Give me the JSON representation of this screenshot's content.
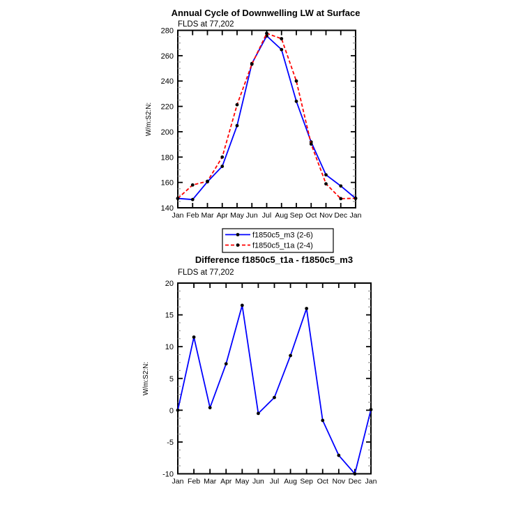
{
  "page": {
    "background": "#ffffff"
  },
  "colors": {
    "axis": "#000000",
    "minor_tick": "#999999",
    "marker": "#000000",
    "series_blue": "#0000ff",
    "series_red": "#ff0000"
  },
  "chart_data": [
    {
      "type": "line",
      "title": "Annual Cycle of Downwelling LW at Surface",
      "subtitle": "FLDS at 77,202",
      "ylabel": "W/m:S2:N:",
      "xlabel": "",
      "categories": [
        "Jan",
        "Feb",
        "Mar",
        "Apr",
        "May",
        "Jun",
        "Jul",
        "Aug",
        "Sep",
        "Oct",
        "Nov",
        "Dec",
        "Jan"
      ],
      "ylim": [
        140,
        280
      ],
      "ytick_major": 20,
      "yminor_per_major": 4,
      "grid": false,
      "legend_position": "below-center",
      "series": [
        {
          "name": "f1850c5_m3 (2-6)",
          "color": "#0000ff",
          "line_style": "solid",
          "marker": "black-dot",
          "values": [
            147.4,
            146.5,
            160.5,
            172.7,
            204.8,
            253.8,
            275.6,
            264.8,
            224.0,
            191.9,
            166.0,
            157.2,
            147.4
          ]
        },
        {
          "name": "f1850c5_t1a (2-4)",
          "color": "#ff0000",
          "line_style": "dashed",
          "marker": "black-dot",
          "values": [
            147.4,
            158.0,
            160.9,
            180.0,
            221.3,
            253.3,
            277.6,
            273.4,
            240.0,
            190.3,
            158.9,
            147.2,
            147.5
          ]
        }
      ]
    },
    {
      "type": "line",
      "title": "Difference f1850c5_t1a - f1850c5_m3",
      "subtitle": "FLDS at 77,202",
      "ylabel": "W/m:S2:N:",
      "xlabel": "",
      "categories": [
        "Jan",
        "Feb",
        "Mar",
        "Apr",
        "May",
        "Jun",
        "Jul",
        "Aug",
        "Sep",
        "Oct",
        "Nov",
        "Dec",
        "Jan"
      ],
      "ylim": [
        -10,
        20
      ],
      "ytick_major": 5,
      "yminor_per_major": 4,
      "grid": false,
      "legend_position": "none",
      "series": [
        {
          "name": "difference",
          "color": "#0000ff",
          "line_style": "solid",
          "marker": "black-dot",
          "values": [
            0.0,
            11.5,
            0.4,
            7.3,
            16.5,
            -0.5,
            2.0,
            8.6,
            16.0,
            -1.6,
            -7.1,
            -10.0,
            0.1
          ]
        }
      ]
    }
  ]
}
